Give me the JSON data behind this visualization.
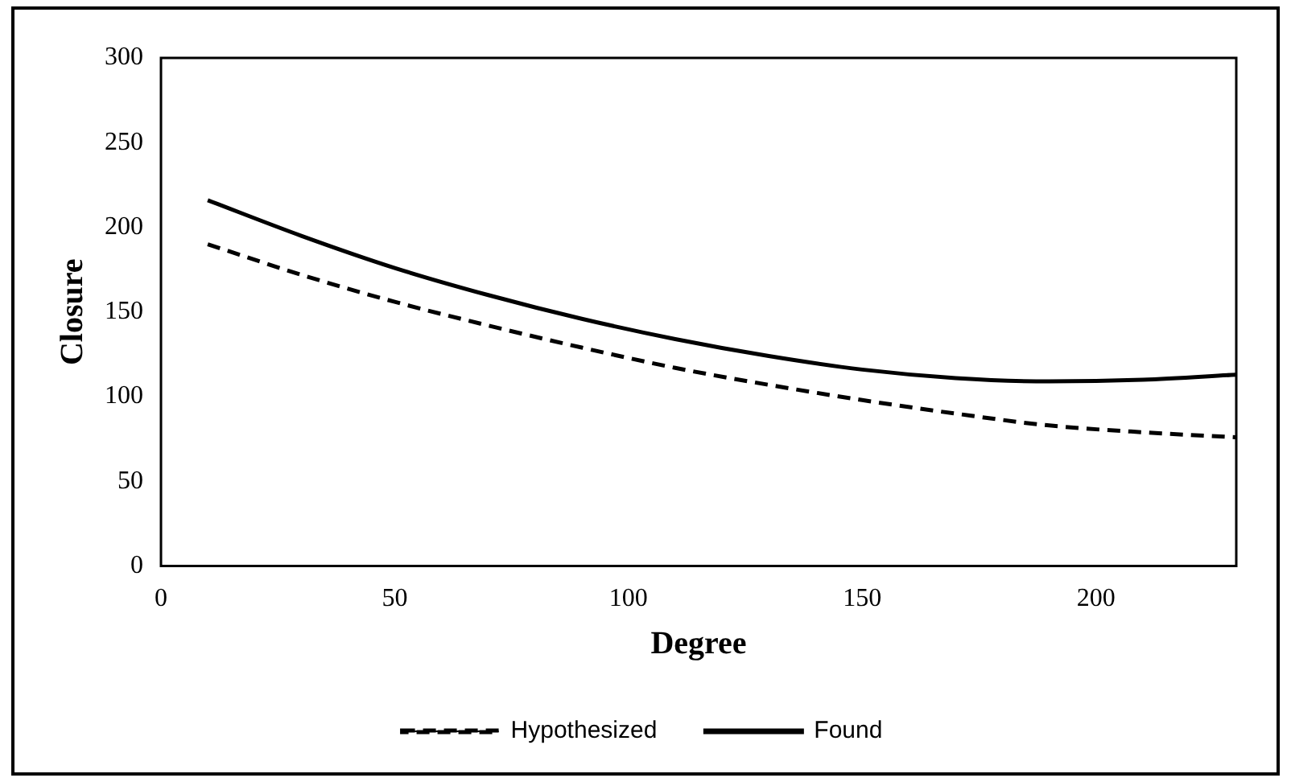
{
  "chart_data": {
    "type": "line",
    "xlabel": "Degree",
    "ylabel": "Closure",
    "xlim": [
      0,
      230
    ],
    "xticks": [
      0,
      50,
      100,
      150,
      200
    ],
    "ylim": [
      0,
      300
    ],
    "yticks": [
      0,
      50,
      100,
      150,
      200,
      250,
      300
    ],
    "grid": false,
    "legend": "bottom",
    "marker": "none",
    "series": [
      {
        "name": "Hypothesized",
        "color": "#000000",
        "line_style": "dashed",
        "x": [
          10,
          30,
          50,
          70,
          90,
          110,
          130,
          150,
          170,
          190,
          210,
          230
        ],
        "values": [
          190,
          172,
          156,
          142,
          129,
          117,
          107,
          98,
          90,
          83,
          79,
          76
        ]
      },
      {
        "name": "Found",
        "color": "#000000",
        "line_style": "solid",
        "x": [
          10,
          30,
          50,
          70,
          90,
          110,
          130,
          150,
          170,
          190,
          210,
          230
        ],
        "values": [
          216,
          195,
          176,
          160,
          146,
          134,
          124,
          116,
          111,
          109,
          110,
          113
        ]
      }
    ]
  }
}
